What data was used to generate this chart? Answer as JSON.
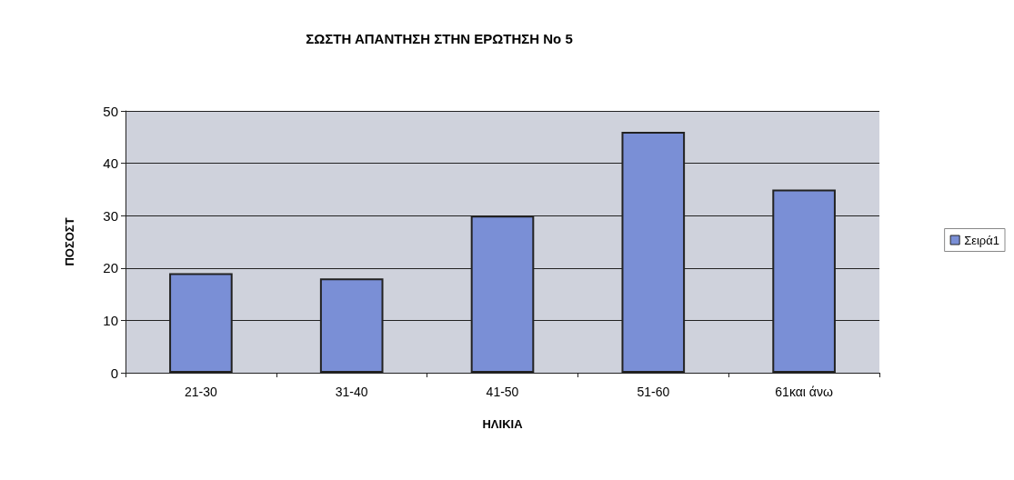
{
  "chart_data": {
    "type": "bar",
    "title": "ΣΩΣΤΗ ΑΠΑΝΤΗΣΗ ΣΤΗΝ ΕΡΩΤΗΣΗ Νο 5",
    "xlabel": "ΗΛΙΚΙΑ",
    "ylabel": "ΠΟΣΟΣΤ",
    "categories": [
      "21-30",
      "31-40",
      "41-50",
      "51-60",
      "61και άνω"
    ],
    "series": [
      {
        "name": "Σειρά1",
        "color": "#7a8fd6",
        "values": [
          19,
          18,
          30,
          46,
          35
        ]
      }
    ],
    "ylim": [
      0,
      50
    ],
    "yticks": [
      0,
      10,
      20,
      30,
      40,
      50
    ],
    "grid": "y",
    "legend": "right"
  }
}
